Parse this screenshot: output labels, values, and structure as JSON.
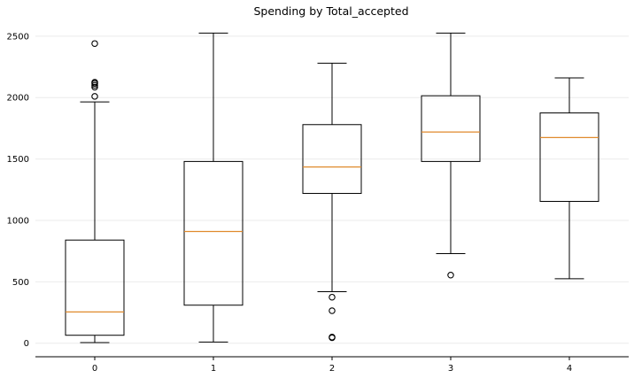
{
  "chart_data": {
    "type": "box",
    "title": "Spending by Total_accepted",
    "xlabel": "",
    "ylabel": "",
    "categories": [
      "0",
      "1",
      "2",
      "3",
      "4"
    ],
    "ylim": [
      -110,
      2600
    ],
    "yticks": [
      0,
      500,
      1000,
      1500,
      2000,
      2500
    ],
    "grid": "horizontal",
    "colors": {
      "box": "#000000",
      "median": "#e08a2c",
      "grid": "#ebebeb"
    },
    "boxes": [
      {
        "category": "0",
        "whislo": 5,
        "q1": 65,
        "median": 255,
        "q3": 840,
        "whishi": 1965,
        "fliers": [
          2010,
          2085,
          2100,
          2115,
          2125,
          2440
        ]
      },
      {
        "category": "1",
        "whislo": 10,
        "q1": 310,
        "median": 910,
        "q3": 1480,
        "whishi": 2525,
        "fliers": []
      },
      {
        "category": "2",
        "whislo": 420,
        "q1": 1220,
        "median": 1435,
        "q3": 1780,
        "whishi": 2280,
        "fliers": [
          375,
          265,
          50,
          45
        ]
      },
      {
        "category": "3",
        "whislo": 730,
        "q1": 1480,
        "median": 1720,
        "q3": 2015,
        "whishi": 2525,
        "fliers": [
          555
        ]
      },
      {
        "category": "4",
        "whislo": 525,
        "q1": 1155,
        "median": 1675,
        "q3": 1875,
        "whishi": 2160,
        "fliers": []
      }
    ]
  }
}
